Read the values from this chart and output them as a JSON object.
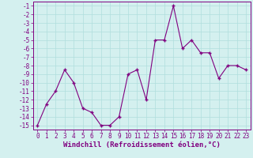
{
  "x": [
    0,
    1,
    2,
    3,
    4,
    5,
    6,
    7,
    8,
    9,
    10,
    11,
    12,
    13,
    14,
    15,
    16,
    17,
    18,
    19,
    20,
    21,
    22,
    23
  ],
  "y": [
    -15,
    -12.5,
    -11,
    -8.5,
    -10,
    -13,
    -13.5,
    -15,
    -15,
    -14,
    -9,
    -8.5,
    -12,
    -5,
    -5,
    -1,
    -6,
    -5,
    -6.5,
    -6.5,
    -9.5,
    -8,
    -8,
    -8.5
  ],
  "line_color": "#800080",
  "marker_color": "#800080",
  "bg_color": "#d4f0ef",
  "grid_color": "#b0dedd",
  "xlabel": "Windchill (Refroidissement éolien,°C)",
  "xlim": [
    -0.5,
    23.5
  ],
  "ylim": [
    -15.5,
    -0.5
  ],
  "yticks": [
    -15,
    -14,
    -13,
    -12,
    -11,
    -10,
    -9,
    -8,
    -7,
    -6,
    -5,
    -4,
    -3,
    -2,
    -1
  ],
  "xticks": [
    0,
    1,
    2,
    3,
    4,
    5,
    6,
    7,
    8,
    9,
    10,
    11,
    12,
    13,
    14,
    15,
    16,
    17,
    18,
    19,
    20,
    21,
    22,
    23
  ],
  "tick_font_size": 5.5,
  "label_font_size": 6.5
}
